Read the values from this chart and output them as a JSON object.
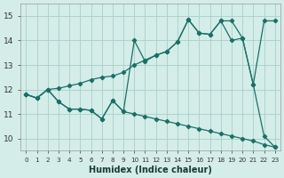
{
  "xlabel": "Humidex (Indice chaleur)",
  "bg_color": "#d4ede8",
  "grid_color": "#aacfc8",
  "line_color": "#1a7068",
  "xlim": [
    -0.5,
    23.5
  ],
  "ylim": [
    9.5,
    15.5
  ],
  "xticks": [
    0,
    1,
    2,
    3,
    4,
    5,
    6,
    7,
    8,
    9,
    10,
    11,
    12,
    13,
    14,
    15,
    16,
    17,
    18,
    19,
    20,
    21,
    22,
    23
  ],
  "yticks": [
    10,
    11,
    12,
    13,
    14,
    15
  ],
  "line1_x": [
    0,
    1,
    2,
    3,
    4,
    5,
    6,
    7,
    8,
    9,
    10,
    11,
    12,
    13,
    14,
    15,
    16,
    17,
    18,
    19,
    20,
    21,
    22,
    23
  ],
  "line1_y": [
    11.8,
    11.65,
    12.0,
    12.05,
    12.15,
    12.25,
    12.4,
    12.5,
    12.55,
    12.7,
    13.0,
    13.2,
    13.4,
    13.55,
    13.95,
    14.85,
    14.3,
    14.25,
    14.8,
    14.0,
    14.1,
    12.2,
    14.8,
    14.8
  ],
  "line2_x": [
    0,
    1,
    2,
    3,
    4,
    5,
    6,
    7,
    8,
    9,
    10,
    11,
    12,
    13,
    14,
    15,
    16,
    17,
    18,
    19,
    20,
    21,
    22,
    23
  ],
  "line2_y": [
    11.8,
    11.65,
    12.0,
    11.5,
    11.2,
    11.2,
    11.15,
    10.8,
    11.55,
    11.1,
    14.0,
    13.15,
    13.4,
    13.55,
    13.95,
    14.85,
    14.3,
    14.25,
    14.8,
    14.8,
    14.1,
    12.2,
    10.1,
    9.65
  ],
  "line3_x": [
    0,
    1,
    2,
    3,
    4,
    5,
    6,
    7,
    8,
    9,
    10,
    11,
    12,
    13,
    14,
    15,
    16,
    17,
    18,
    19,
    20,
    21,
    22,
    23
  ],
  "line3_y": [
    11.8,
    11.65,
    12.0,
    11.5,
    11.2,
    11.2,
    11.15,
    10.8,
    11.55,
    11.1,
    11.0,
    10.9,
    10.8,
    10.7,
    10.6,
    10.5,
    10.4,
    10.3,
    10.2,
    10.1,
    10.0,
    9.9,
    9.75,
    9.65
  ]
}
